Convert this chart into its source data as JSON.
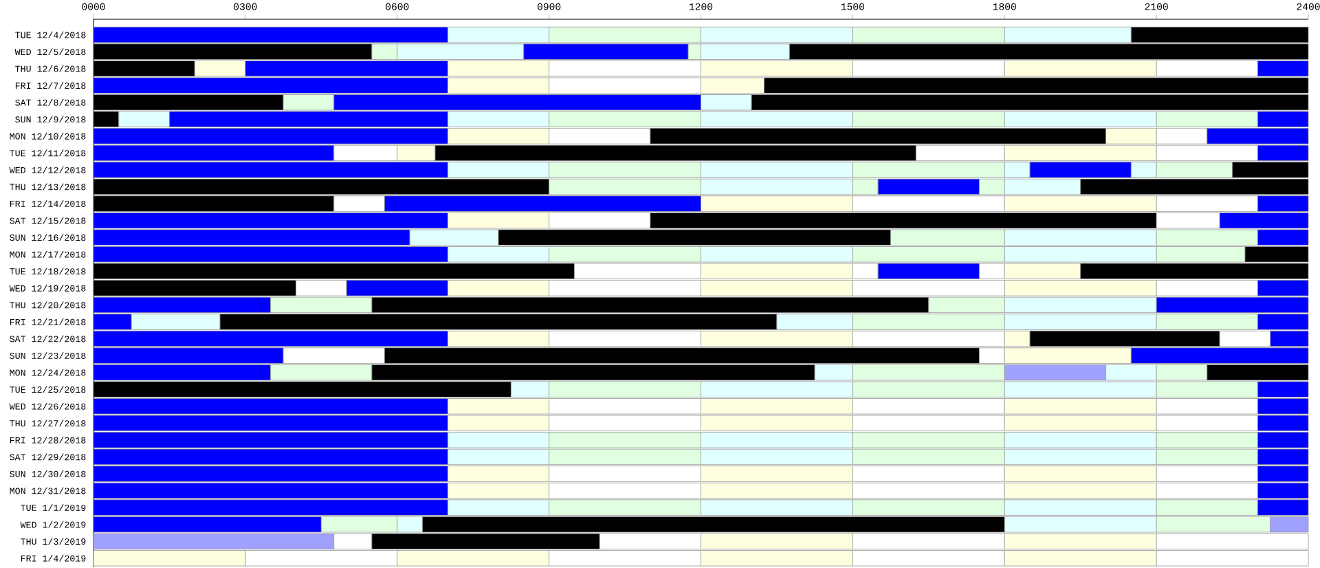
{
  "chart_data": {
    "type": "bar",
    "orientation": "horizontal",
    "stacked": true,
    "categories": [
      "TUE 12/4/2018",
      "WED 12/5/2018",
      "THU 12/6/2018",
      "FRI 12/7/2018",
      "SAT 12/8/2018",
      "SUN 12/9/2018",
      "MON 12/10/2018",
      "TUE 12/11/2018",
      "WED 12/12/2018",
      "THU 12/13/2018",
      "FRI 12/14/2018",
      "SAT 12/15/2018",
      "SUN 12/16/2018",
      "MON 12/17/2018",
      "TUE 12/18/2018",
      "WED 12/19/2018",
      "THU 12/20/2018",
      "FRI 12/21/2018",
      "SAT 12/22/2018",
      "SUN 12/23/2018",
      "MON 12/24/2018",
      "TUE 12/25/2018",
      "WED 12/26/2018",
      "THU 12/27/2018",
      "FRI 12/28/2018",
      "SAT 12/29/2018",
      "SUN 12/30/2018",
      "MON 12/31/2018",
      "TUE 1/1/2019",
      "WED 1/2/2019",
      "THU 1/3/2019",
      "FRI 1/4/2019"
    ],
    "xlim": [
      0,
      2400
    ],
    "xticks": [
      {
        "value": 0,
        "label": "0000"
      },
      {
        "value": 300,
        "label": "0300"
      },
      {
        "value": 600,
        "label": "0600"
      },
      {
        "value": 900,
        "label": "0900"
      },
      1200,
      1500,
      1800,
      2100,
      2400
    ],
    "series": [
      {
        "values": [
          700,
          550,
          200,
          700,
          375,
          50,
          700,
          475,
          700,
          900,
          475,
          700,
          625,
          700,
          950,
          400,
          350,
          75,
          700,
          375,
          350,
          825,
          700,
          700,
          700,
          700,
          700,
          700,
          700,
          450,
          475,
          300
        ],
        "colors": [
          "#0000ff",
          "#000000",
          "#000000",
          "#0000ff",
          "#000000",
          "#000000",
          "#0000ff",
          "#0000ff",
          "#0000ff",
          "#000000",
          "#000000",
          "#0000ff",
          "#0000ff",
          "#0000ff",
          "#000000",
          "#000000",
          "#0000ff",
          "#0000ff",
          "#0000ff",
          "#0000ff",
          "#0000ff",
          "#000000",
          "#0000ff",
          "#0000ff",
          "#0000ff",
          "#0000ff",
          "#0000ff",
          "#0000ff",
          "#0000ff",
          "#0000ff",
          "#a0a0ff",
          "#ffffe0"
        ]
      },
      {
        "values": [
          200,
          50,
          100,
          200,
          100,
          100,
          200,
          125,
          200,
          300,
          100,
          200,
          175,
          200,
          250,
          100,
          200,
          175,
          200,
          200,
          200,
          75,
          200,
          200,
          200,
          200,
          200,
          200,
          200,
          150,
          75,
          300
        ],
        "colors": [
          "#e0ffff",
          "#e0ffe0",
          "#ffffe0",
          "#ffffe0",
          "#e0ffe0",
          "#e0ffff",
          "#ffffe0",
          "#ffffff",
          "#e0ffff",
          "#e0ffe0",
          "#ffffff",
          "#ffffe0",
          "#e0ffff",
          "#e0ffff",
          "#ffffff",
          "#ffffff",
          "#e0ffe0",
          "#e0ffff",
          "#ffffe0",
          "#ffffff",
          "#e0ffe0",
          "#e0ffff",
          "#ffffe0",
          "#ffffe0",
          "#e0ffff",
          "#e0ffff",
          "#ffffe0",
          "#ffffe0",
          "#e0ffff",
          "#e0ffe0",
          "#ffffff",
          "#ffffff"
        ]
      },
      {
        "values": [
          300,
          250,
          400,
          300,
          725,
          550,
          200,
          75,
          300,
          300,
          625,
          200,
          775,
          300,
          300,
          200,
          1100,
          1100,
          300,
          1175,
          875,
          300,
          300,
          300,
          300,
          300,
          300,
          300,
          300,
          50,
          450,
          300
        ],
        "colors": [
          "#e0ffe0",
          "#e0ffff",
          "#0000ff",
          "#ffffff",
          "#0000ff",
          "#0000ff",
          "#ffffff",
          "#ffffe0",
          "#e0ffe0",
          "#e0ffff",
          "#0000ff",
          "#ffffff",
          "#000000",
          "#e0ffe0",
          "#ffffe0",
          "#0000ff",
          "#000000",
          "#000000",
          "#ffffff",
          "#000000",
          "#000000",
          "#e0ffe0",
          "#ffffff",
          "#ffffff",
          "#e0ffe0",
          "#e0ffe0",
          "#ffffff",
          "#ffffff",
          "#e0ffe0",
          "#e0ffff",
          "#000000",
          "#ffffe0"
        ]
      },
      {
        "values": [
          300,
          325,
          200,
          125,
          100,
          200,
          900,
          950,
          300,
          50,
          300,
          1000,
          225,
          300,
          50,
          200,
          150,
          150,
          300,
          50,
          75,
          300,
          300,
          300,
          300,
          300,
          300,
          300,
          300,
          1150,
          200,
          300
        ],
        "colors": [
          "#e0ffff",
          "#0000ff",
          "#ffffe0",
          "#ffffe0",
          "#e0ffff",
          "#e0ffff",
          "#000000",
          "#000000",
          "#e0ffff",
          "#e0ffe0",
          "#ffffe0",
          "#000000",
          "#e0ffe0",
          "#e0ffff",
          "#ffffff",
          "#ffffe0",
          "#e0ffe0",
          "#e0ffff",
          "#ffffe0",
          "#ffffff",
          "#e0ffff",
          "#e0ffff",
          "#ffffe0",
          "#ffffe0",
          "#e0ffff",
          "#e0ffff",
          "#ffffe0",
          "#ffffe0",
          "#e0ffff",
          "#000000",
          "#ffffff",
          "#ffffff"
        ]
      },
      {
        "values": [
          300,
          25,
          300,
          1075,
          1100,
          300,
          100,
          175,
          300,
          200,
          300,
          125,
          300,
          300,
          200,
          300,
          300,
          300,
          300,
          250,
          300,
          300,
          300,
          300,
          300,
          300,
          300,
          300,
          300,
          300,
          300,
          300
        ],
        "colors": [
          "#e0ffe0",
          "#e0ffe0",
          "#ffffff",
          "#000000",
          "#000000",
          "#e0ffe0",
          "#ffffe0",
          "#ffffff",
          "#e0ffe0",
          "#0000ff",
          "#ffffff",
          "#ffffff",
          "#e0ffff",
          "#e0ffe0",
          "#0000ff",
          "#ffffff",
          "#e0ffff",
          "#e0ffe0",
          "#ffffff",
          "#ffffe0",
          "#e0ffe0",
          "#e0ffe0",
          "#ffffff",
          "#ffffff",
          "#e0ffe0",
          "#e0ffe0",
          "#ffffff",
          "#ffffff",
          "#e0ffe0",
          "#e0ffff",
          "#ffffe0",
          "#ffffe0"
        ]
      },
      {
        "values": [
          250,
          175,
          300,
          null,
          null,
          300,
          100,
          300,
          50,
          50,
          300,
          175,
          200,
          300,
          50,
          300,
          300,
          300,
          50,
          350,
          200,
          300,
          300,
          300,
          300,
          300,
          300,
          300,
          300,
          225,
          300,
          300
        ],
        "colors": [
          "#e0ffff",
          "#e0ffff",
          "#ffffe0",
          null,
          null,
          "#e0ffff",
          "#ffffff",
          "#ffffe0",
          "#e0ffff",
          "#e0ffe0",
          "#ffffe0",
          "#0000ff",
          "#e0ffe0",
          "#e0ffff",
          "#ffffff",
          "#ffffe0",
          "#0000ff",
          "#e0ffff",
          "#ffffe0",
          "#0000ff",
          "#a0a0ff",
          "#e0ffff",
          "#ffffe0",
          "#ffffe0",
          "#e0ffff",
          "#e0ffff",
          "#ffffe0",
          "#ffffe0",
          "#e0ffff",
          "#e0ffe0",
          "#ffffff",
          "#ffffff"
        ]
      },
      {
        "values": [
          350,
          1025,
          300,
          null,
          null,
          300,
          200,
          200,
          200,
          150,
          200,
          null,
          100,
          175,
          150,
          300,
          null,
          200,
          375,
          null,
          100,
          200,
          200,
          200,
          200,
          200,
          200,
          200,
          200,
          75,
          300,
          300
        ],
        "colors": [
          "#000000",
          "#000000",
          "#ffffff",
          null,
          null,
          "#e0ffe0",
          "#0000ff",
          "#ffffff",
          "#0000ff",
          "#e0ffff",
          "#ffffff",
          null,
          "#0000ff",
          "#e0ffe0",
          "#ffffe0",
          "#ffffff",
          null,
          "#e0ffe0",
          "#000000",
          null,
          "#e0ffff",
          "#e0ffe0",
          "#ffffff",
          "#ffffff",
          "#e0ffe0",
          "#e0ffe0",
          "#ffffff",
          "#ffffff",
          "#e0ffe0",
          "#a0a0ff",
          "#ffffe0",
          "#ffffe0"
        ]
      },
      {
        "values": [
          null,
          null,
          300,
          null,
          null,
          300,
          null,
          100,
          50,
          450,
          100,
          null,
          null,
          125,
          450,
          300,
          null,
          100,
          100,
          null,
          100,
          100,
          100,
          100,
          100,
          100,
          100,
          100,
          100,
          null,
          300,
          300
        ],
        "colors": [
          null,
          null,
          "#ffffe0",
          null,
          null,
          "#e0ffff",
          null,
          "#0000ff",
          "#e0ffff",
          "#000000",
          "#0000ff",
          null,
          null,
          "#000000",
          "#000000",
          "#ffffe0",
          null,
          "#0000ff",
          "#ffffff",
          null,
          "#e0ffe0",
          "#0000ff",
          "#0000ff",
          "#0000ff",
          "#0000ff",
          "#0000ff",
          "#0000ff",
          "#0000ff",
          "#0000ff",
          null,
          "#ffffff",
          "#ffffff"
        ]
      },
      {
        "values": [
          null,
          null,
          200,
          null,
          null,
          200,
          null,
          null,
          150,
          null,
          null,
          null,
          null,
          null,
          null,
          200,
          null,
          null,
          75,
          null,
          200,
          null,
          null,
          null,
          null,
          null,
          null,
          null,
          null,
          null,
          null,
          null
        ],
        "colors": [
          null,
          null,
          "#ffffff",
          null,
          null,
          "#e0ffe0",
          null,
          null,
          "#e0ffe0",
          null,
          null,
          null,
          null,
          null,
          null,
          "#ffffff",
          null,
          null,
          "#0000ff",
          null,
          "#000000",
          null,
          null,
          null,
          null,
          null,
          null,
          null,
          null,
          null,
          null,
          null
        ]
      },
      {
        "values": [
          null,
          null,
          100,
          null,
          null,
          100,
          null,
          null,
          150,
          null,
          null,
          null,
          null,
          null,
          null,
          100,
          null,
          null,
          null,
          null,
          null,
          null,
          null,
          null,
          null,
          null,
          null,
          null,
          null,
          null,
          null,
          null
        ],
        "colors": [
          null,
          null,
          "#0000ff",
          null,
          null,
          "#0000ff",
          null,
          null,
          "#000000",
          null,
          null,
          null,
          null,
          null,
          null,
          "#0000ff",
          null,
          null,
          null,
          null,
          null,
          null,
          null,
          null,
          null,
          null,
          null,
          null,
          null,
          null,
          null,
          null
        ]
      }
    ]
  }
}
